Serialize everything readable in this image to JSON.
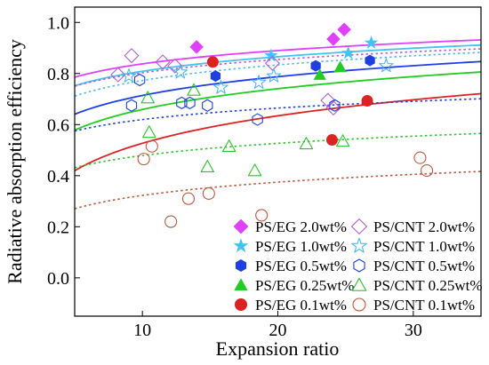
{
  "chart_data": {
    "type": "scatter",
    "xlabel": "Expansion ratio",
    "ylabel": "Radiative absorption efficiency",
    "xlim": [
      5,
      35
    ],
    "ylim": [
      -0.15,
      1.06
    ],
    "xticks": [
      10,
      20,
      30
    ],
    "yticks": [
      0.0,
      0.2,
      0.4,
      0.6,
      0.8,
      1.0
    ],
    "grid": false,
    "legend_placement": "bottom-right",
    "series": [
      {
        "name": "PS/EG 2.0wt%",
        "marker": "diamond",
        "filled": true,
        "color": "#e040ff",
        "x": [
          14.0,
          24.1,
          24.9
        ],
        "y": [
          0.904,
          0.935,
          0.972
        ],
        "fit": {
          "a": 0.665,
          "b": 0.075
        }
      },
      {
        "name": "PS/EG 1.0wt%",
        "marker": "star",
        "filled": true,
        "color": "#40c4f0",
        "x": [
          19.5,
          25.2,
          26.9
        ],
        "y": [
          0.87,
          0.88,
          0.92
        ],
        "fit": {
          "a": 0.62,
          "b": 0.082
        }
      },
      {
        "name": "PS/EG 0.5wt%",
        "marker": "hexagon",
        "filled": true,
        "color": "#1f3fe0",
        "x": [
          15.4,
          22.8,
          26.8
        ],
        "y": [
          0.79,
          0.83,
          0.851
        ],
        "fit": {
          "a": 0.47,
          "b": 0.106
        }
      },
      {
        "name": "PS/EG 0.25wt%",
        "marker": "triangle",
        "filled": true,
        "color": "#22cc22",
        "x": [
          23.1,
          24.6
        ],
        "y": [
          0.795,
          0.825
        ],
        "fit": {
          "a": 0.39,
          "b": 0.117
        }
      },
      {
        "name": "PS/EG 0.1wt%",
        "marker": "circle",
        "filled": true,
        "color": "#dd2222",
        "x": [
          15.2,
          24.0,
          26.6
        ],
        "y": [
          0.845,
          0.54,
          0.693
        ],
        "fit": {
          "a": 0.17,
          "b": 0.155
        }
      },
      {
        "name": "PS/CNT 2.0wt%",
        "marker": "diamond",
        "filled": false,
        "color": "#b060d0",
        "x": [
          8.2,
          9.2,
          11.5,
          12.4,
          19.6,
          23.7,
          24.1
        ],
        "y": [
          0.795,
          0.87,
          0.845,
          0.83,
          0.84,
          0.695,
          0.665
        ],
        "fit": {
          "a": 0.63,
          "b": 0.075
        }
      },
      {
        "name": "PS/CNT 1.0wt%",
        "marker": "star",
        "filled": false,
        "color": "#50b8e8",
        "x": [
          9.0,
          12.8,
          15.8,
          18.6,
          19.7,
          28.0
        ],
        "y": [
          0.79,
          0.805,
          0.745,
          0.765,
          0.79,
          0.83
        ],
        "fit": {
          "a": 0.57,
          "b": 0.088
        }
      },
      {
        "name": "PS/CNT 0.5wt%",
        "marker": "hexagon",
        "filled": false,
        "color": "#2040d0",
        "x": [
          9.2,
          9.8,
          12.9,
          13.5,
          14.8,
          18.5,
          24.2
        ],
        "y": [
          0.675,
          0.775,
          0.685,
          0.685,
          0.675,
          0.62,
          0.675
        ],
        "fit": {
          "a": 0.47,
          "b": 0.065
        }
      },
      {
        "name": "PS/CNT 0.25wt%",
        "marker": "triangle",
        "filled": false,
        "color": "#30c030",
        "x": [
          10.4,
          10.5,
          13.8,
          14.8,
          16.4,
          18.3,
          22.1,
          24.8
        ],
        "y": [
          0.705,
          0.57,
          0.735,
          0.435,
          0.515,
          0.42,
          0.525,
          0.535
        ],
        "fit": {
          "a": 0.32,
          "b": 0.069
        }
      },
      {
        "name": "PS/CNT 0.1wt%",
        "marker": "circle",
        "filled": false,
        "color": "#b85a40",
        "x": [
          10.1,
          10.7,
          12.1,
          13.4,
          14.9,
          18.8,
          30.5,
          31.0
        ],
        "y": [
          0.465,
          0.515,
          0.22,
          0.31,
          0.33,
          0.245,
          0.47,
          0.42
        ],
        "fit": {
          "a": 0.15,
          "b": 0.075
        }
      }
    ]
  }
}
